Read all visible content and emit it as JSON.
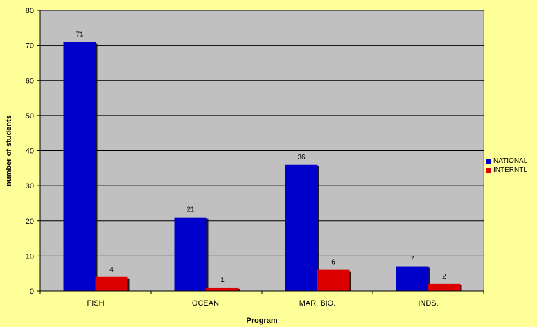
{
  "chart_data": {
    "type": "bar",
    "xlabel": "Program",
    "ylabel": "number of students",
    "categories": [
      "FISH",
      "OCEAN.",
      "MAR. BIO.",
      "INDS."
    ],
    "series": [
      {
        "name": "NATIONAL",
        "color": "#0000cc",
        "values": [
          71,
          21,
          36,
          7
        ]
      },
      {
        "name": "INTERNTL",
        "color": "#dd0000",
        "values": [
          4,
          1,
          6,
          2
        ]
      }
    ],
    "ylim": [
      0,
      80
    ],
    "yticks": [
      "0",
      "10",
      "20",
      "30",
      "40",
      "50",
      "60",
      "70",
      "80"
    ],
    "grid": true,
    "plot_background": "#c0c0c0",
    "page_background": "#ffff99",
    "legend_position": "right"
  }
}
